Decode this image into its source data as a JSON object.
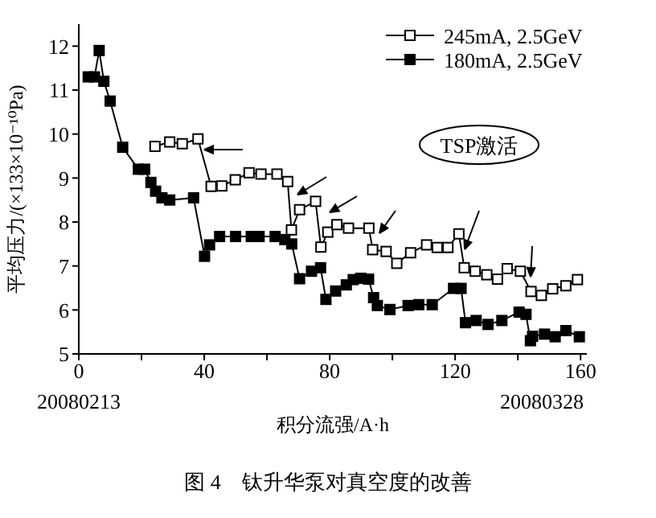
{
  "chart_data": {
    "type": "line",
    "xlabel": "积分流强/A·h",
    "ylabel": "平均压力/(×133×10⁻¹⁰Pa)",
    "xlim": [
      0,
      162
    ],
    "ylim": [
      5,
      12.5
    ],
    "xticks": [
      0,
      {
        "value": 20,
        "label": null
      },
      40,
      {
        "value": 60,
        "label": null
      },
      80,
      {
        "value": 100,
        "label": null
      },
      120,
      {
        "value": 140,
        "label": null
      },
      160
    ],
    "yticks": [
      5,
      6,
      7,
      8,
      9,
      10,
      11,
      12
    ],
    "legend": "top right",
    "marker": "square",
    "line_style": "solid",
    "annotations": [
      "TSP激活",
      "20080213",
      "20080328",
      "图 4　钛升华泵对真空度的改善"
    ],
    "series": [
      {
        "name": "245mA, 2.5GeV",
        "color": "#000000",
        "x": [
          24.3,
          29,
          33,
          38,
          42.2,
          45.6,
          49.9,
          54.3,
          58.1,
          63.2,
          66.6,
          67.8,
          70.4,
          75.5,
          77.2,
          79.4,
          82.3,
          86,
          92.5,
          93.7,
          98,
          101.4,
          105.8,
          110.9,
          114.3,
          117.7,
          121.2,
          122.9,
          126.4,
          130.1,
          133.5,
          136.6,
          140.8,
          144.2,
          147.5,
          151.1,
          155.3,
          159
        ],
        "values": [
          9.72,
          9.82,
          9.78,
          9.89,
          8.81,
          8.82,
          8.96,
          9.12,
          9.09,
          9.09,
          8.92,
          7.82,
          8.28,
          8.47,
          7.43,
          7.77,
          7.94,
          7.86,
          7.86,
          7.37,
          7.33,
          7.06,
          7.3,
          7.48,
          7.42,
          7.42,
          7.73,
          6.96,
          6.88,
          6.8,
          6.7,
          6.94,
          6.88,
          6.42,
          6.33,
          6.48,
          6.55,
          6.69
        ]
      },
      {
        "name": "180mA, 2.5GeV",
        "color": "#000000",
        "x": [
          3,
          5,
          6.5,
          8,
          10,
          14,
          19,
          21,
          23,
          24.5,
          26.5,
          29,
          36.6,
          40.1,
          41.7,
          44.9,
          50,
          55,
          57.5,
          62.6,
          65.7,
          67.9,
          70.4,
          74.2,
          77.1,
          78.8,
          81.9,
          85.3,
          87.5,
          89.9,
          92.4,
          94,
          95.2,
          99.2,
          105,
          108.4,
          112.7,
          119.5,
          121.9,
          123.3,
          126.7,
          130.5,
          134.9,
          140.4,
          142.6,
          144,
          144.7,
          148.5,
          151.9,
          155.3,
          159.6
        ],
        "values": [
          11.3,
          11.3,
          11.9,
          11.2,
          10.75,
          9.7,
          9.2,
          9.2,
          8.9,
          8.7,
          8.55,
          8.5,
          8.55,
          7.22,
          7.48,
          7.67,
          7.67,
          7.67,
          7.67,
          7.67,
          7.6,
          7.5,
          6.71,
          6.88,
          6.96,
          6.24,
          6.43,
          6.57,
          6.69,
          6.72,
          6.7,
          6.28,
          6.1,
          6.01,
          6.1,
          6.12,
          6.12,
          6.49,
          6.49,
          5.71,
          5.76,
          5.67,
          5.76,
          5.95,
          5.9,
          5.3,
          5.4,
          5.45,
          5.39,
          5.53,
          5.39
        ]
      }
    ]
  }
}
